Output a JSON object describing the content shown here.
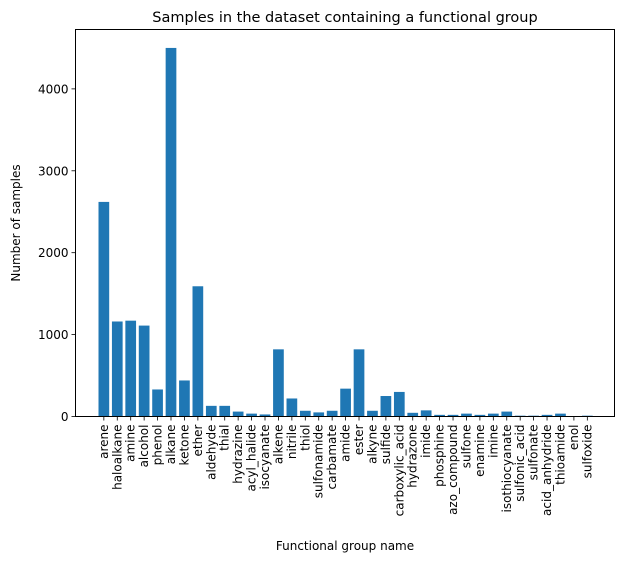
{
  "chart_data": {
    "type": "bar",
    "title": "Samples in the dataset containing a functional group",
    "xlabel": "Functional group name",
    "ylabel": "Number of samples",
    "ylim": [
      0,
      4725
    ],
    "yticks": [
      0,
      1000,
      2000,
      3000,
      4000
    ],
    "ytick_labels": [
      "0",
      "1000",
      "2000",
      "3000",
      "4000"
    ],
    "grid": false,
    "legend": "none",
    "bar_color": "#1f77b4",
    "categories": [
      "arene",
      "haloalkane",
      "amine",
      "alcohol",
      "phenol",
      "alkane",
      "ketone",
      "ether",
      "aldehyde",
      "thial",
      "hydrazine",
      "acyl_halide",
      "isocyanate",
      "alkene",
      "nitrile",
      "thiol",
      "sulfonamide",
      "carbamate",
      "amide",
      "ester",
      "alkyne",
      "sulfide",
      "carboxylic_acid",
      "hydrazone",
      "imide",
      "phosphine",
      "azo_compound",
      "sulfone",
      "enamine",
      "imine",
      "isothiocyanate",
      "sulfonic_acid",
      "sulfonate",
      "acid_anhydride",
      "thioamide",
      "enol",
      "sulfoxide"
    ],
    "values": [
      2620,
      1160,
      1170,
      1110,
      330,
      4500,
      440,
      1590,
      130,
      130,
      60,
      35,
      25,
      820,
      220,
      70,
      50,
      70,
      340,
      820,
      70,
      250,
      300,
      45,
      75,
      20,
      20,
      35,
      20,
      35,
      60,
      10,
      10,
      20,
      35,
      5,
      10
    ]
  }
}
